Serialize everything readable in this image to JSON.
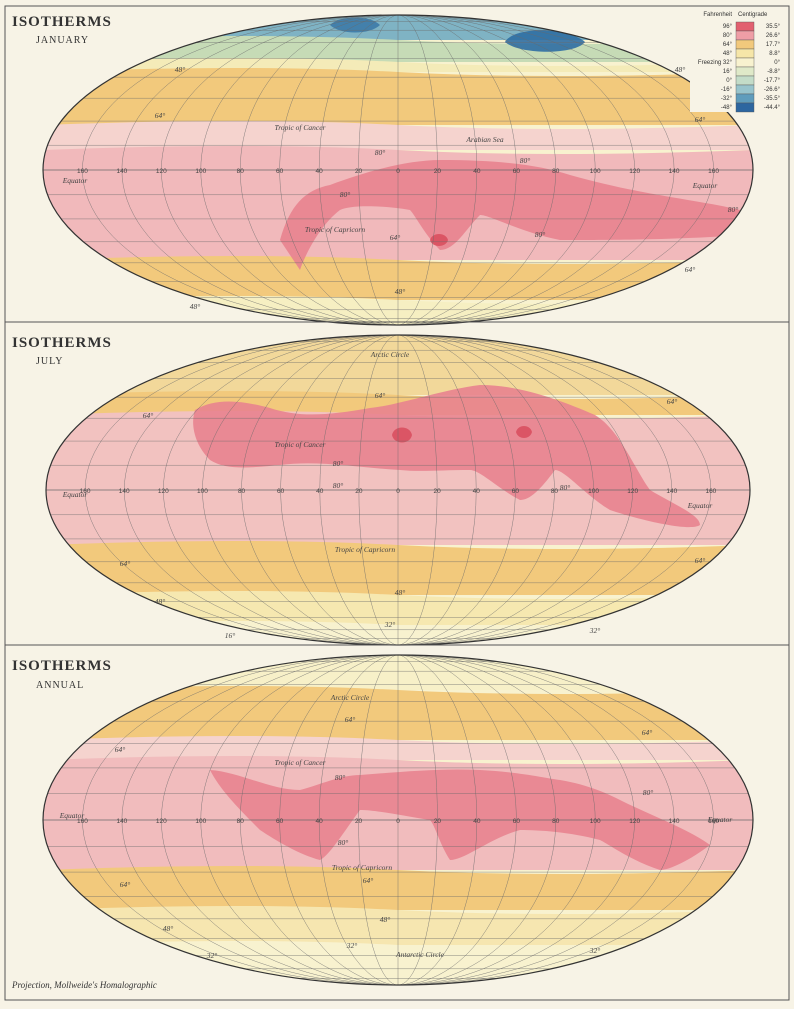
{
  "maps": [
    {
      "title": "ISOTHERMS",
      "subtitle": "JANUARY",
      "labels": [
        "Tropic of Cancer",
        "Equator",
        "Equator",
        "Tropic of Capricorn",
        "48°",
        "64°",
        "64°",
        "80°",
        "80°",
        "80°",
        "80°",
        "80°",
        "64°",
        "64°",
        "48°",
        "48°",
        "48°",
        "Arabian Sea"
      ]
    },
    {
      "title": "ISOTHERMS",
      "subtitle": "JULY",
      "labels": [
        "Tropic of Cancer",
        "Equator",
        "Equator",
        "Tropic of Capricorn",
        "64°",
        "64°",
        "64°",
        "80°",
        "80°",
        "80°",
        "64°",
        "64°",
        "48°",
        "48°",
        "32°",
        "32°",
        "16°",
        "Arctic Circle"
      ]
    },
    {
      "title": "ISOTHERMS",
      "subtitle": "ANNUAL",
      "labels": [
        "Tropic of Cancer",
        "Equator",
        "Equator",
        "Tropic of Capricorn",
        "Arctic Circle",
        "Antarctic Circle",
        "64°",
        "64°",
        "64°",
        "80°",
        "80°",
        "80°",
        "64°",
        "64°",
        "48°",
        "48°",
        "32°",
        "32°",
        "32°"
      ]
    }
  ],
  "longitude_labels": [
    "160",
    "140",
    "120",
    "100",
    "80",
    "60",
    "40",
    "20",
    "0",
    "20",
    "40",
    "60",
    "80",
    "100",
    "120",
    "140",
    "160"
  ],
  "legend": {
    "fahrenheit": "Fahrenheit",
    "centigrade": "Centigrade",
    "rows": [
      {
        "fahrenheit": "96°",
        "centigrade": "35.5°",
        "color": "#e2606f"
      },
      {
        "fahrenheit": "80°",
        "centigrade": "26.6°",
        "color": "#ef9ea6"
      },
      {
        "fahrenheit": "64°",
        "centigrade": "17.7°",
        "color": "#f2c97c"
      },
      {
        "fahrenheit": "48°",
        "centigrade": "8.8°",
        "color": "#f6e6a8"
      },
      {
        "fahrenheit": "Freezing 32°",
        "centigrade": "0°",
        "color": "#f8f2cf"
      },
      {
        "fahrenheit": "16°",
        "centigrade": "-8.8°",
        "color": "#dfe9c8"
      },
      {
        "fahrenheit": "0°",
        "centigrade": "-17.7°",
        "color": "#c3dcc8"
      },
      {
        "fahrenheit": "-16°",
        "centigrade": "-26.6°",
        "color": "#98c4cc"
      },
      {
        "fahrenheit": "-32°",
        "centigrade": "-35.5°",
        "color": "#5f9cbc"
      },
      {
        "fahrenheit": "-48°",
        "centigrade": "-44.4°",
        "color": "#2d66a0"
      }
    ]
  },
  "footer": "Projection, Mollweide's Homalographic"
}
